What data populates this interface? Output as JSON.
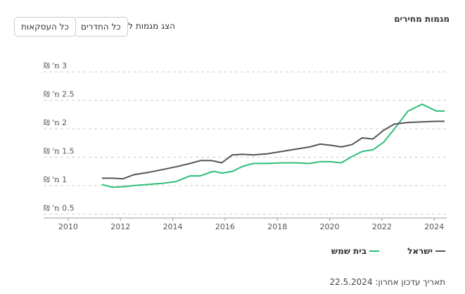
{
  "ui": {
    "title": "מגמות מחירים",
    "filter_label": "הצג מגמות ל:",
    "buttons": [
      "כל החדרים",
      "כל העסקאות"
    ],
    "footer": "תאריך עדכון אחרון: 22.5.2024"
  },
  "chart_data": {
    "type": "line",
    "x": [
      2011.29,
      2011.7,
      2012.1,
      2012.5,
      2013.04,
      2013.58,
      2014.12,
      2014.66,
      2015.06,
      2015.47,
      2015.6,
      2015.87,
      2016.28,
      2016.68,
      2017.08,
      2017.62,
      2018.16,
      2018.7,
      2019.24,
      2019.64,
      2020.04,
      2020.45,
      2020.85,
      2021.25,
      2021.66,
      2022.06,
      2022.47,
      2023.0,
      2023.54,
      2024.08,
      2024.4
    ],
    "series": [
      {
        "name": "בית שמש",
        "color": "#2dbf78",
        "values": [
          1.02,
          0.97,
          0.98,
          1.0,
          1.02,
          1.04,
          1.07,
          1.17,
          1.17,
          1.24,
          1.25,
          1.22,
          1.25,
          1.34,
          1.39,
          1.39,
          1.4,
          1.4,
          1.39,
          1.42,
          1.42,
          1.4,
          1.51,
          1.6,
          1.63,
          1.76,
          1.99,
          2.31,
          2.43,
          2.31,
          2.31
        ]
      },
      {
        "name": "ישראל",
        "color": "#555555",
        "values": [
          1.13,
          1.13,
          1.12,
          1.19,
          1.23,
          1.28,
          1.33,
          1.39,
          1.44,
          1.44,
          1.43,
          1.4,
          1.54,
          1.55,
          1.54,
          1.56,
          1.6,
          1.64,
          1.68,
          1.73,
          1.71,
          1.68,
          1.72,
          1.84,
          1.82,
          1.97,
          2.08,
          2.11,
          2.12,
          2.13,
          2.13
        ]
      }
    ],
    "xlim": [
      2009.06,
      2024.48
    ],
    "xticks": [
      2010,
      2012,
      2014,
      2016,
      2018,
      2020,
      2022,
      2024
    ],
    "ylim": [
      0.43,
      3.15
    ],
    "yticks": [
      {
        "value": 0.5,
        "label": "0.5 מ' ₪"
      },
      {
        "value": 1,
        "label": "1 מ' ₪"
      },
      {
        "value": 1.5,
        "label": "1.5 מ' ₪"
      },
      {
        "value": 2,
        "label": "2 מ' ₪"
      },
      {
        "value": 2.5,
        "label": "2.5 מ' ₪"
      },
      {
        "value": 3,
        "label": "3 מ' ₪"
      }
    ],
    "grid": true
  }
}
